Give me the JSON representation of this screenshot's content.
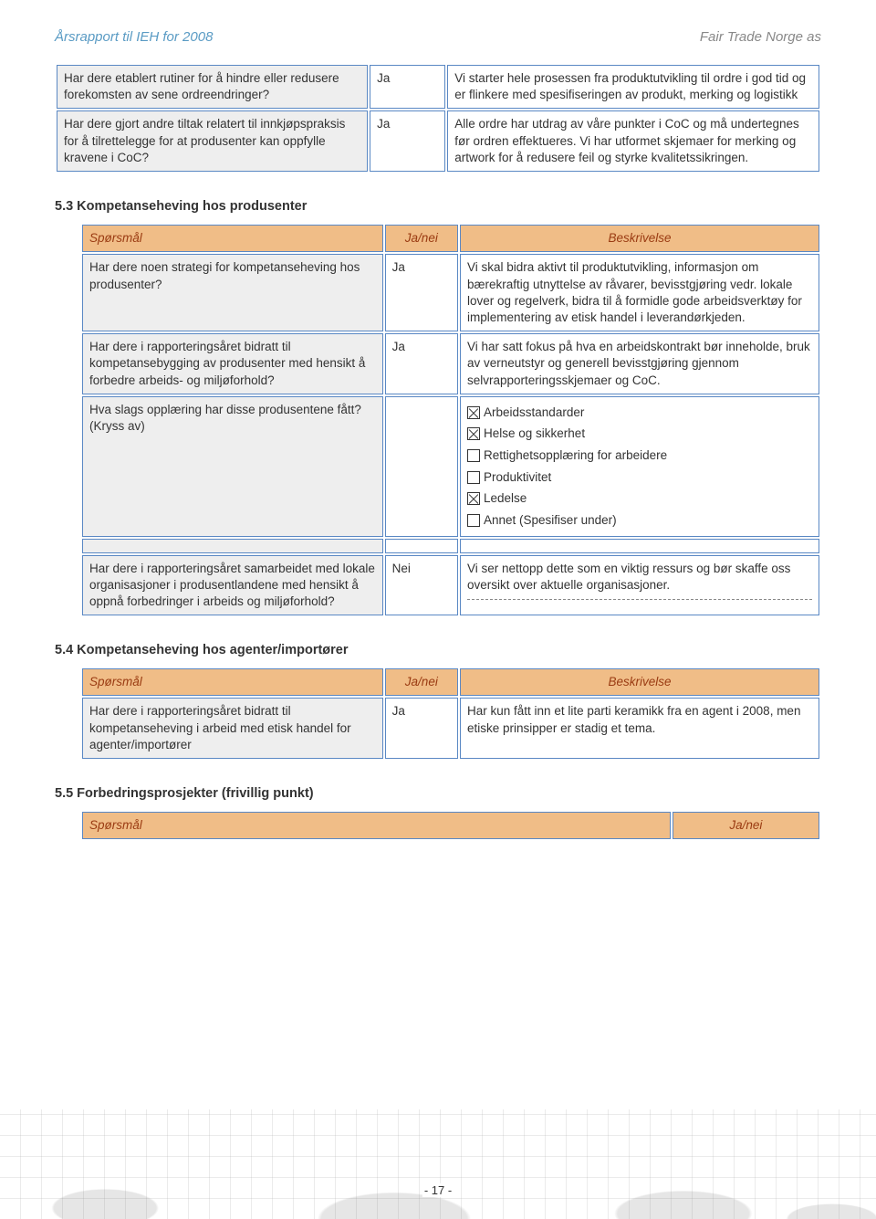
{
  "colors": {
    "header_bg": "#f0bd87",
    "header_text": "#9a3b12",
    "cell_border": "#5a88c4",
    "q_col_bg": "#eeeeee",
    "page_header_blue": "#5a9bc4",
    "page_header_grey": "#888888"
  },
  "page_header": {
    "left": "Årsrapport til IEH for 2008",
    "right": "Fair Trade Norge as"
  },
  "table_headers": {
    "q": "Spørsmål",
    "a": "Ja/nei",
    "d": "Beskrivelse"
  },
  "top_rows": [
    {
      "q": "Har dere etablert rutiner for å hindre eller redusere forekomsten av sene ordreendringer?",
      "a": "Ja",
      "d": "Vi starter hele prosessen fra produktutvikling til ordre i god tid og er flinkere med spesifiseringen av produkt, merking og logistikk"
    },
    {
      "q": "Har dere gjort andre tiltak relatert til innkjøpspraksis for å tilrettelegge for at produsenter kan oppfylle kravene i CoC?",
      "a": "Ja",
      "d": "Alle ordre har utdrag av våre punkter i CoC og må undertegnes før ordren effektueres. Vi har utformet skjemaer for merking og artwork for å redusere feil og styrke kvalitetssikringen."
    }
  ],
  "s53": {
    "title": "5.3 Kompetanseheving hos produsenter",
    "rows": [
      {
        "q": "Har dere noen strategi for kompetanseheving hos produsenter?",
        "a": "Ja",
        "d": "Vi skal bidra aktivt til produktutvikling, informasjon om bærekraftig utnyttelse av råvarer, bevisstgjøring vedr. lokale lover og regelverk, bidra til å formidle gode arbeidsverktøy for implementering av etisk handel i leverandørkjeden."
      },
      {
        "q": "Har dere i rapporteringsåret bidratt til kompetansebygging av produsenter med hensikt å forbedre arbeids- og miljøforhold?",
        "a": "Ja",
        "d": "Vi har satt fokus på hva en arbeidskontrakt bør inneholde, bruk av verneutstyr og generell bevisstgjøring gjennom selvrapporteringsskjemaer og CoC."
      }
    ],
    "checkbox_row": {
      "q": "Hva slags opplæring har disse produsentene fått? (Kryss av)",
      "options": [
        {
          "label": "Arbeidsstandarder",
          "checked": true
        },
        {
          "label": "Helse og sikkerhet",
          "checked": true
        },
        {
          "label": "Rettighetsopplæring for arbeidere",
          "checked": false
        },
        {
          "label": "Produktivitet",
          "checked": false
        },
        {
          "label": "Ledelse",
          "checked": true
        },
        {
          "label": "Annet (Spesifiser under)",
          "checked": false
        }
      ]
    },
    "last_row": {
      "q": "Har dere i rapporteringsåret samarbeidet med lokale organisasjoner i produsentlandene med hensikt å oppnå forbedringer i arbeids og miljøforhold?",
      "a": "Nei",
      "d": "Vi ser nettopp dette som en viktig ressurs og bør skaffe oss oversikt over aktuelle organisasjoner."
    }
  },
  "s54": {
    "title": "5.4 Kompetanseheving hos agenter/importører",
    "rows": [
      {
        "q": "Har dere i rapporteringsåret bidratt til kompetanseheving i arbeid med etisk handel for agenter/importører",
        "a": "Ja",
        "d": "Har kun fått inn et lite parti keramikk fra en agent i 2008, men etiske prinsipper er stadig et tema."
      }
    ]
  },
  "s55": {
    "title": "5.5 Forbedringsprosjekter (frivillig punkt)"
  },
  "page_number": "- 17 -"
}
